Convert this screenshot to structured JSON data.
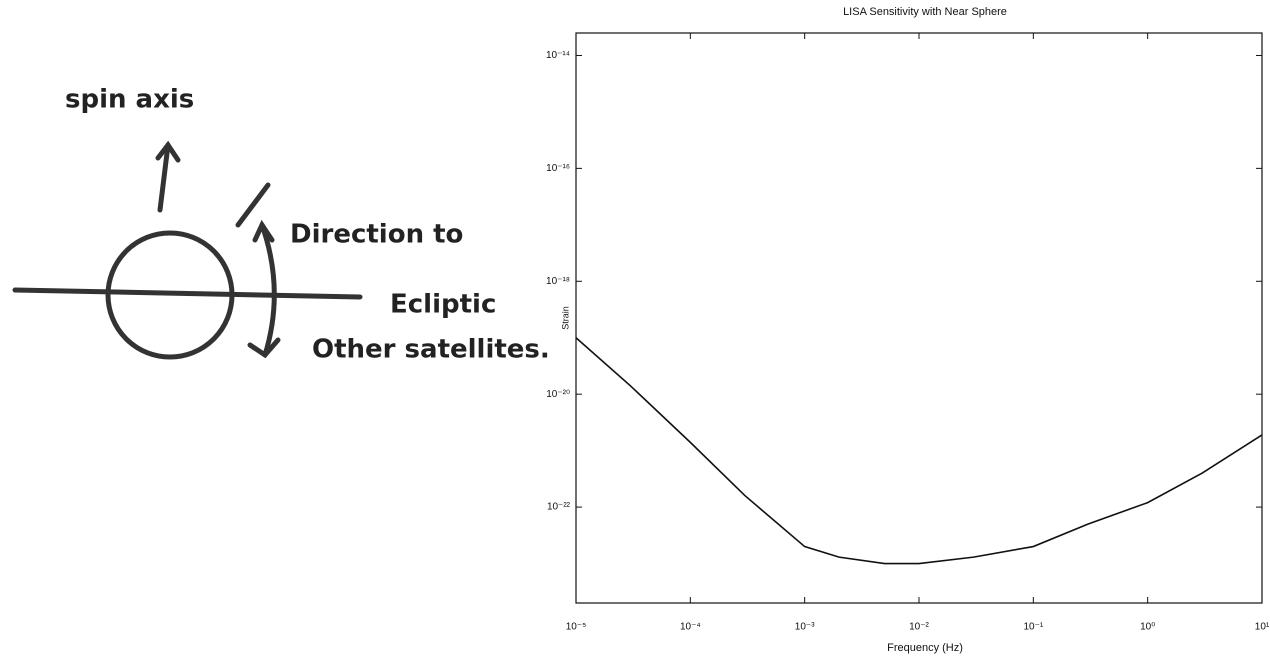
{
  "diagram": {
    "spin_label": "spin axis",
    "direction_label": "Direction to",
    "ecliptic_label": "Ecliptic",
    "satellites_label": "Other satellites."
  },
  "chart_data": {
    "type": "line",
    "title": "LISA Sensitivity with Near Sphere",
    "x_label": "Frequency (Hz)",
    "y_label": "Strain",
    "x": [
      1e-05,
      3e-05,
      0.0001,
      0.0003,
      0.001,
      0.002,
      0.005,
      0.01,
      0.03,
      0.1,
      0.3,
      1,
      3,
      10
    ],
    "series": [
      {
        "name": "Strain",
        "color": "#111111",
        "values": [
          1e-19,
          1.4e-20,
          1.4e-21,
          1.6e-22,
          2e-23,
          1.3e-23,
          1e-23,
          1e-23,
          1.3e-23,
          2e-23,
          5e-23,
          1.2e-22,
          4e-22,
          1.9e-21
        ]
      }
    ],
    "xscale": "log",
    "yscale": "log",
    "xlim": [
      1e-05,
      10
    ],
    "ylim": [
      2e-24,
      2.5e-14
    ],
    "xticks": [
      {
        "value": 1e-05,
        "label": "10⁻⁵"
      },
      {
        "value": 0.0001,
        "label": "10⁻⁴"
      },
      {
        "value": 0.001,
        "label": "10⁻³"
      },
      {
        "value": 0.01,
        "label": "10⁻²"
      },
      {
        "value": 0.1,
        "label": "10⁻¹"
      },
      {
        "value": 1,
        "label": "10⁰"
      },
      {
        "value": 10,
        "label": "10¹"
      }
    ],
    "yticks": [
      {
        "value": 1e-14,
        "label": "10⁻¹⁴"
      },
      {
        "value": 1e-16,
        "label": "10⁻¹⁶"
      },
      {
        "value": 1e-18,
        "label": "10⁻¹⁸"
      },
      {
        "value": 1e-20,
        "label": "10⁻²⁰"
      },
      {
        "value": 1e-22,
        "label": "10⁻²²"
      }
    ],
    "grid": false
  }
}
